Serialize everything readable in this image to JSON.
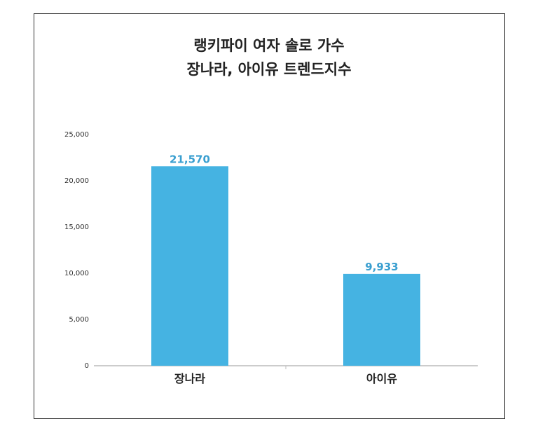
{
  "chart_data": {
    "type": "bar",
    "title_lines": [
      "랭키파이 여자 솔로 가수",
      "장나라, 아이유 트렌드지수"
    ],
    "categories": [
      "장나라",
      "아이유"
    ],
    "values": [
      21570,
      9933
    ],
    "data_labels": [
      "21,570",
      "9,933"
    ],
    "yticks": [
      "0",
      "5,000",
      "10,000",
      "15,000",
      "20,000",
      "25,000"
    ],
    "ylim": [
      0,
      25000
    ],
    "grid": false,
    "bar_color": "#45b3e2",
    "label_color": "#3a9fd0"
  }
}
